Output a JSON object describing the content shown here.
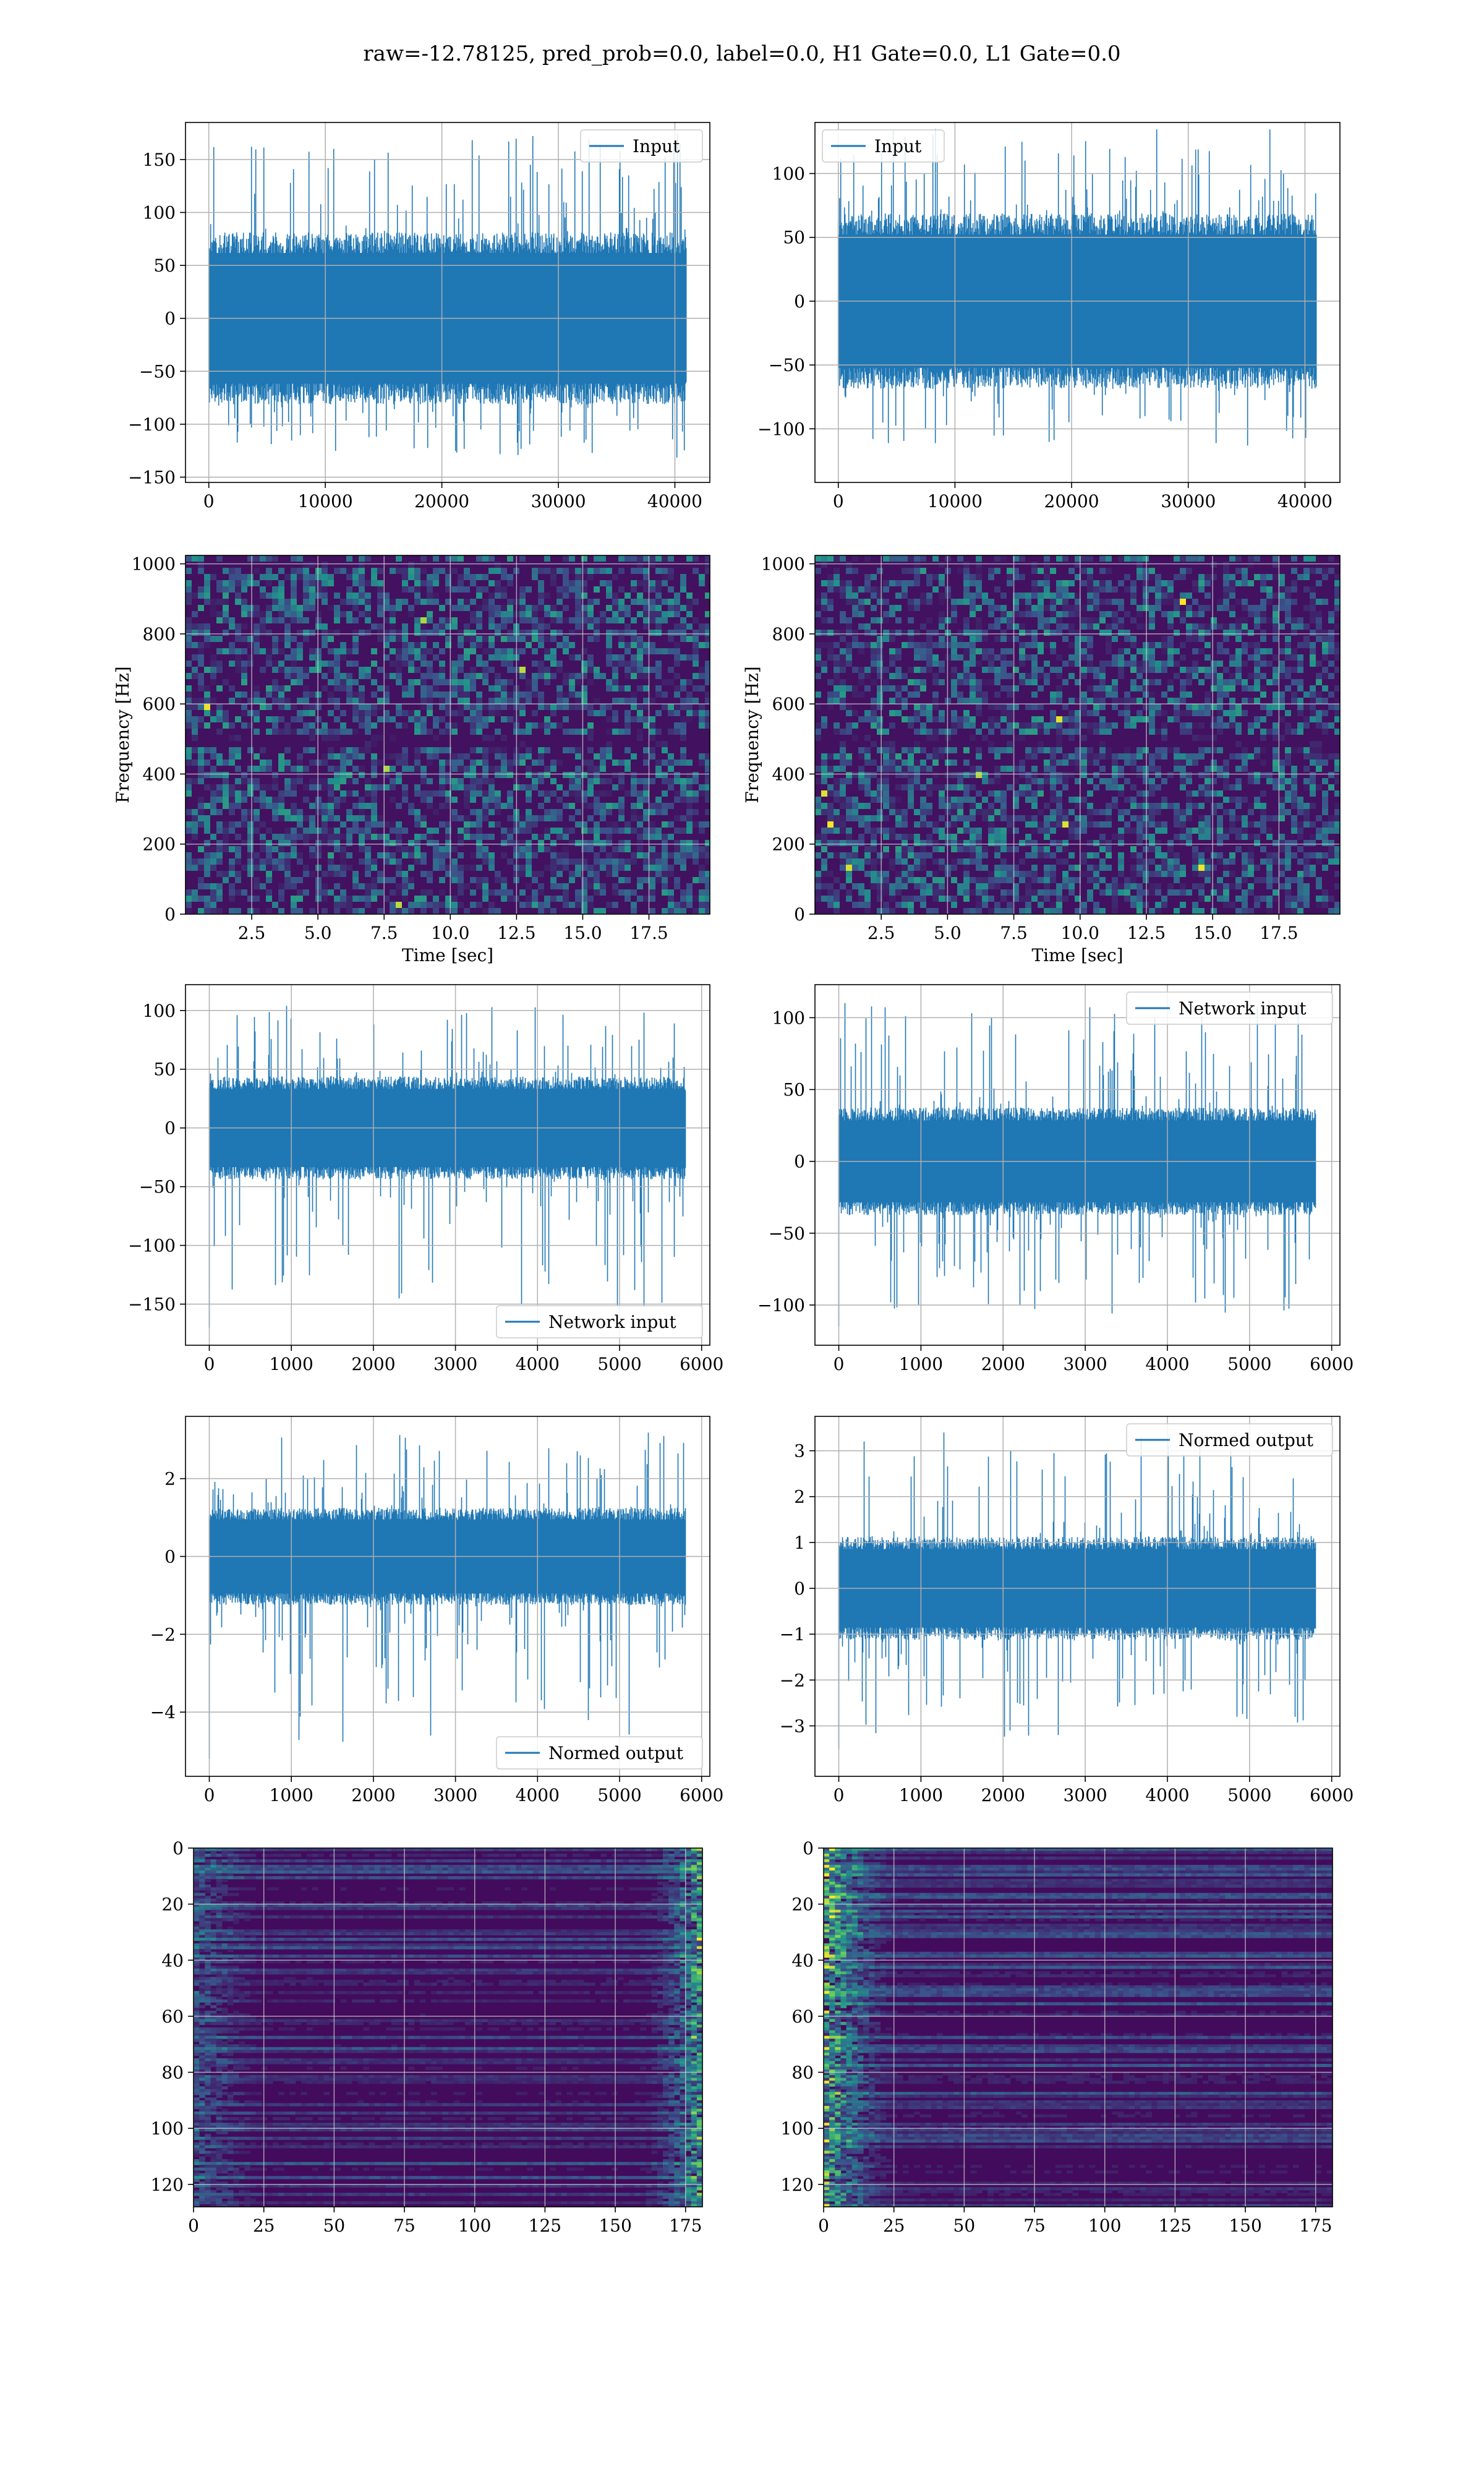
{
  "figure": {
    "suptitle": "raw=-12.78125, pred_prob=0.0, label=0.0, H1 Gate=0.0, L1 Gate=0.0",
    "colors": {
      "line": "#1f77b4",
      "grid": "#b0b0b0",
      "frame": "#000000"
    }
  },
  "chart_data": [
    {
      "id": "p00",
      "type": "line",
      "series": [
        {
          "name": "Input"
        }
      ],
      "xlim": [
        -2000,
        43000
      ],
      "ylim": [
        -155,
        185
      ],
      "xticks": [
        0,
        10000,
        20000,
        30000,
        40000
      ],
      "yticks": [
        -150,
        -100,
        -50,
        0,
        50,
        100,
        150
      ],
      "legend": "upper right",
      "grid": true,
      "signal": {
        "n": 40960,
        "band": 65,
        "spike_max": 175,
        "spike_min": -140
      }
    },
    {
      "id": "p01",
      "type": "line",
      "series": [
        {
          "name": "Input"
        }
      ],
      "xlim": [
        -2000,
        43000
      ],
      "ylim": [
        -142,
        140
      ],
      "xticks": [
        0,
        10000,
        20000,
        30000,
        40000
      ],
      "yticks": [
        -100,
        -50,
        0,
        50,
        100
      ],
      "legend": "upper left",
      "grid": true,
      "signal": {
        "n": 40960,
        "band": 55,
        "spike_max": 135,
        "spike_min": -120
      }
    },
    {
      "id": "p10",
      "type": "heatmap",
      "xlabel": "Time [sec]",
      "ylabel": "Frequency [Hz]",
      "xlim": [
        0,
        19.8
      ],
      "ylim": [
        0,
        1024
      ],
      "xticks": [
        2.5,
        5.0,
        7.5,
        10.0,
        12.5,
        15.0,
        17.5
      ],
      "yticks": [
        0,
        200,
        400,
        600,
        800,
        1000
      ],
      "grid": true,
      "colormap": "viridis"
    },
    {
      "id": "p11",
      "type": "heatmap",
      "xlabel": "Time [sec]",
      "ylabel": "Frequency [Hz]",
      "xlim": [
        0,
        19.8
      ],
      "ylim": [
        0,
        1024
      ],
      "xticks": [
        2.5,
        5.0,
        7.5,
        10.0,
        12.5,
        15.0,
        17.5
      ],
      "yticks": [
        0,
        200,
        400,
        600,
        800,
        1000
      ],
      "grid": true,
      "colormap": "viridis"
    },
    {
      "id": "p20",
      "type": "line",
      "series": [
        {
          "name": "Network input"
        }
      ],
      "xlim": [
        -290,
        6100
      ],
      "ylim": [
        -185,
        122
      ],
      "xticks": [
        0,
        1000,
        2000,
        3000,
        4000,
        5000,
        6000
      ],
      "yticks": [
        -150,
        -100,
        -50,
        0,
        50,
        100
      ],
      "legend": "lower right",
      "grid": true,
      "signal": {
        "n": 5800,
        "band": 35,
        "spike_max": 105,
        "spike_min": -170
      }
    },
    {
      "id": "p21",
      "type": "line",
      "series": [
        {
          "name": "Network input"
        }
      ],
      "xlim": [
        -290,
        6100
      ],
      "ylim": [
        -128,
        123
      ],
      "xticks": [
        0,
        1000,
        2000,
        3000,
        4000,
        5000,
        6000
      ],
      "yticks": [
        -100,
        -50,
        0,
        50,
        100
      ],
      "legend": "upper right",
      "grid": true,
      "signal": {
        "n": 5800,
        "band": 30,
        "spike_max": 112,
        "spike_min": -115
      }
    },
    {
      "id": "p30",
      "type": "line",
      "series": [
        {
          "name": "Normed output"
        }
      ],
      "xlim": [
        -290,
        6100
      ],
      "ylim": [
        -5.65,
        3.6
      ],
      "xticks": [
        0,
        1000,
        2000,
        3000,
        4000,
        5000,
        6000
      ],
      "yticks": [
        -4,
        -2,
        0,
        2
      ],
      "legend": "lower right",
      "grid": true,
      "signal": {
        "n": 5800,
        "band": 1.0,
        "spike_max": 3.2,
        "spike_min": -5.2
      }
    },
    {
      "id": "p31",
      "type": "line",
      "series": [
        {
          "name": "Normed output"
        }
      ],
      "xlim": [
        -290,
        6100
      ],
      "ylim": [
        -4.1,
        3.75
      ],
      "xticks": [
        0,
        1000,
        2000,
        3000,
        4000,
        5000,
        6000
      ],
      "yticks": [
        -3,
        -2,
        -1,
        0,
        1,
        2,
        3
      ],
      "legend": "upper right",
      "grid": true,
      "signal": {
        "n": 5800,
        "band": 0.9,
        "spike_max": 3.4,
        "spike_min": -3.5
      }
    },
    {
      "id": "p40",
      "type": "heatmap",
      "xlim": [
        0,
        181
      ],
      "ylim": [
        128,
        0
      ],
      "xticks": [
        0,
        25,
        50,
        75,
        100,
        125,
        150,
        175
      ],
      "yticks": [
        0,
        20,
        40,
        60,
        80,
        100,
        120
      ],
      "grid": true,
      "colormap": "viridis",
      "hot_side": "right"
    },
    {
      "id": "p41",
      "type": "heatmap",
      "xlim": [
        0,
        181
      ],
      "ylim": [
        128,
        0
      ],
      "xticks": [
        0,
        25,
        50,
        75,
        100,
        125,
        150,
        175
      ],
      "yticks": [
        0,
        20,
        40,
        60,
        80,
        100,
        120
      ],
      "grid": true,
      "colormap": "viridis",
      "hot_side": "left"
    }
  ]
}
